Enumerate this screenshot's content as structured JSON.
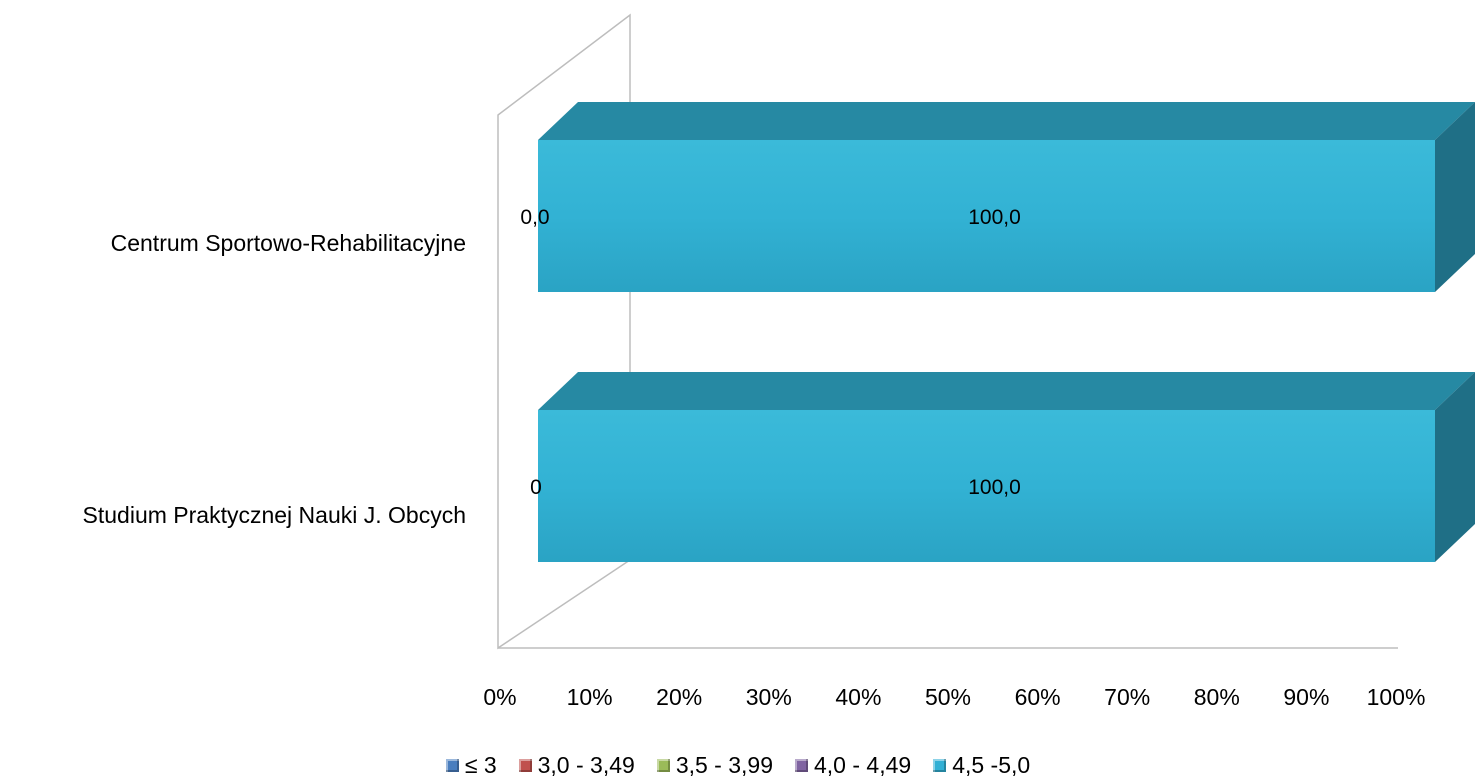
{
  "chart_data": {
    "type": "bar",
    "orientation": "horizontal",
    "stacked": "percent",
    "style": "3d",
    "categories": [
      "Centrum Sportowo-Rehabilitacyjne",
      "Studium Praktycznej Nauki J. Obcych"
    ],
    "series": [
      {
        "name": "≤ 3",
        "color": "#4a7ebf",
        "values": [
          0,
          0
        ]
      },
      {
        "name": "3,0 - 3,49",
        "color": "#c0504d",
        "values": [
          0,
          0
        ]
      },
      {
        "name": "3,5 - 3,99",
        "color": "#9bbb59",
        "values": [
          0,
          0
        ]
      },
      {
        "name": "4,0 - 4,49",
        "color": "#8064a2",
        "values": [
          0,
          0
        ]
      },
      {
        "name": "4,5 -5,0",
        "color": "#31b0d5",
        "values": [
          100,
          100
        ]
      }
    ],
    "data_labels": [
      {
        "category": "Centrum Sportowo-Rehabilitacyjne",
        "zero_labels": "0,0",
        "main_label": "100,0"
      },
      {
        "category": "Studium Praktycznej Nauki J. Obcych",
        "zero_labels": "0",
        "main_label": "100,0"
      }
    ],
    "x_ticks": [
      "0%",
      "10%",
      "20%",
      "30%",
      "40%",
      "50%",
      "60%",
      "70%",
      "80%",
      "90%",
      "100%"
    ],
    "xlim": [
      0,
      100
    ],
    "legend_position": "bottom",
    "grid": false
  }
}
